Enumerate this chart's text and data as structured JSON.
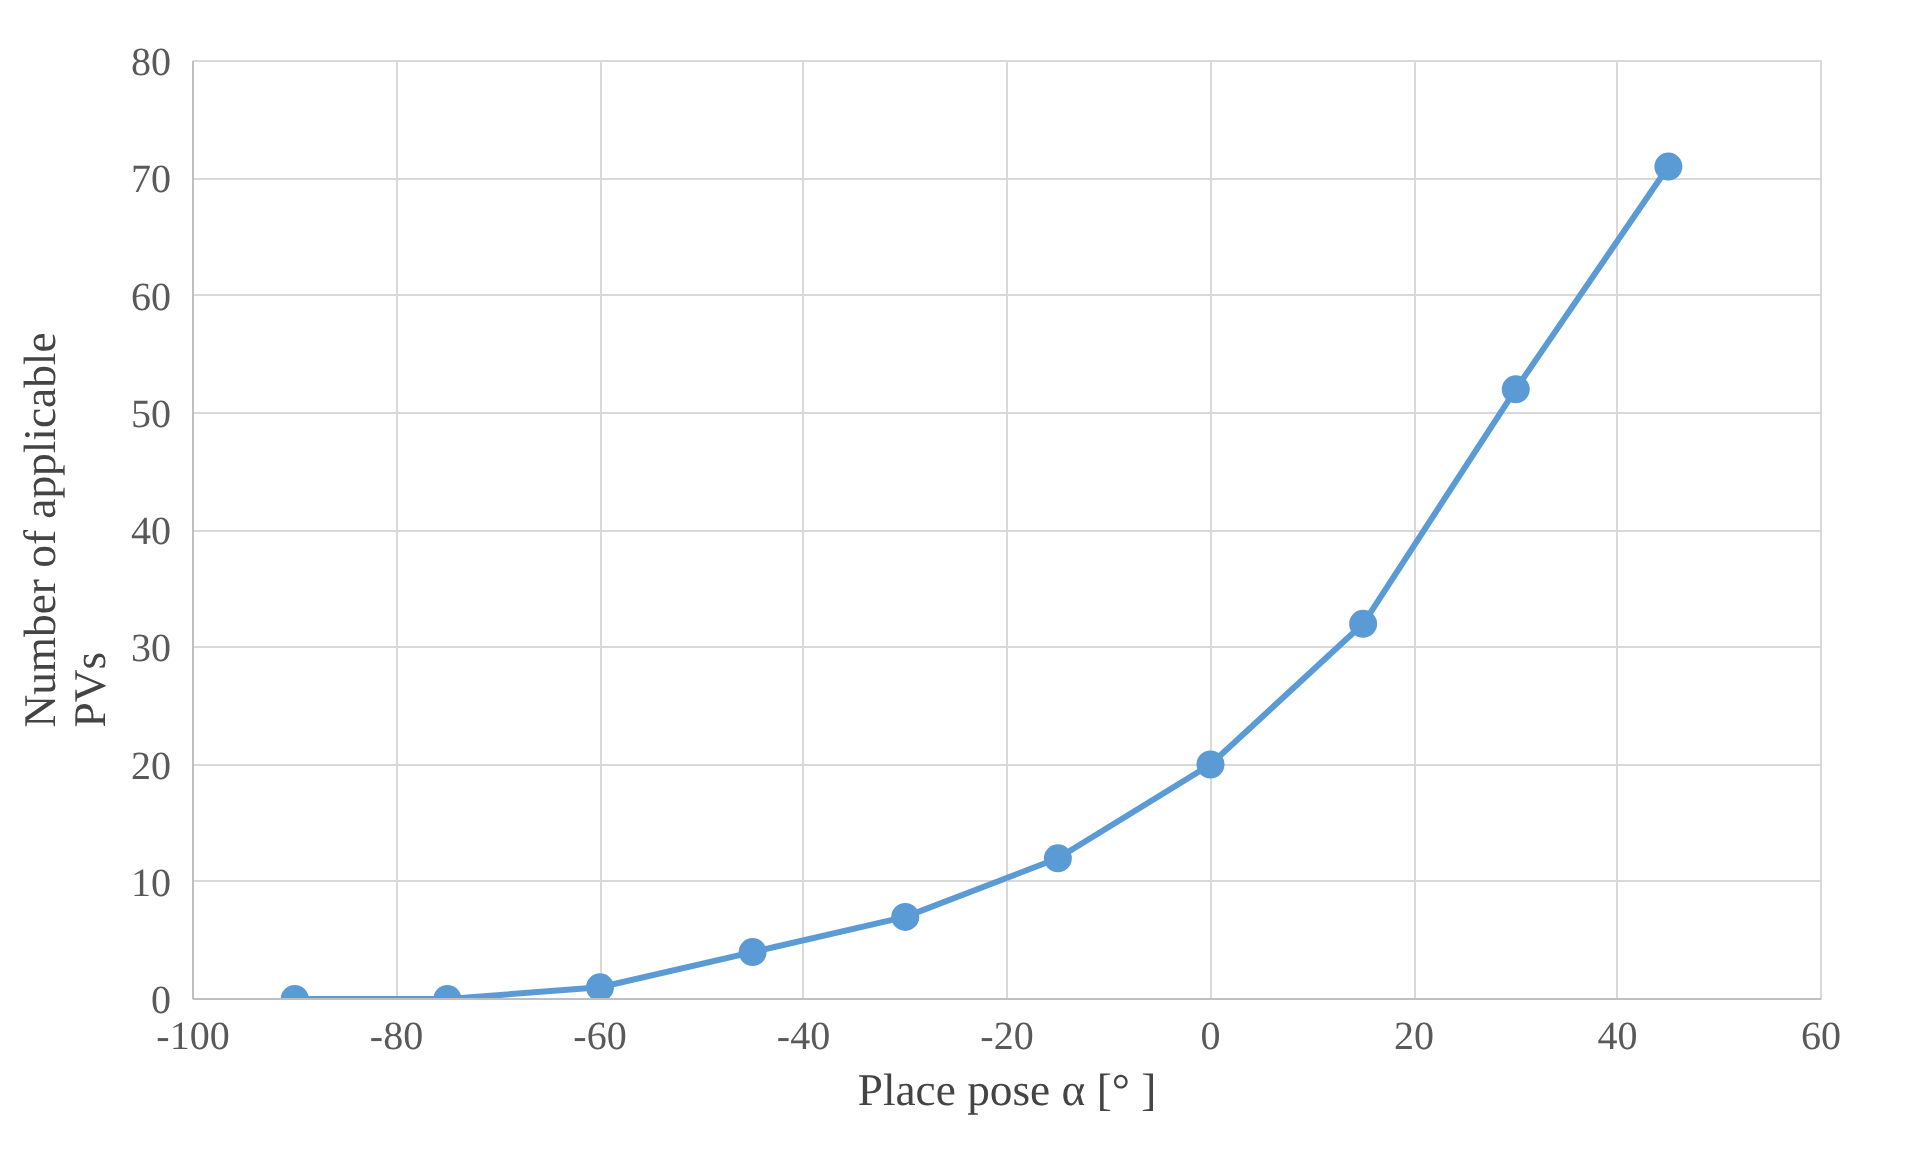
{
  "chart_data": {
    "type": "line",
    "xlabel": "Place pose α [° ]",
    "ylabel": "Number of applicable\nPVs",
    "x": [
      -90,
      -75,
      -60,
      -45,
      -30,
      -15,
      0,
      15,
      30,
      45
    ],
    "series": [
      {
        "color": "#5b9bd5",
        "values": [
          0,
          0,
          1,
          4,
          7,
          12,
          20,
          32,
          52,
          71
        ]
      }
    ],
    "xlim": [
      -100,
      60
    ],
    "xticks": [
      -100,
      -80,
      -60,
      -40,
      -20,
      0,
      20,
      40,
      60
    ],
    "ylim": [
      0,
      80
    ],
    "yticks": [
      0,
      10,
      20,
      30,
      40,
      50,
      60,
      70,
      80
    ],
    "grid": true,
    "marker": "circle",
    "line_style": "solid"
  }
}
